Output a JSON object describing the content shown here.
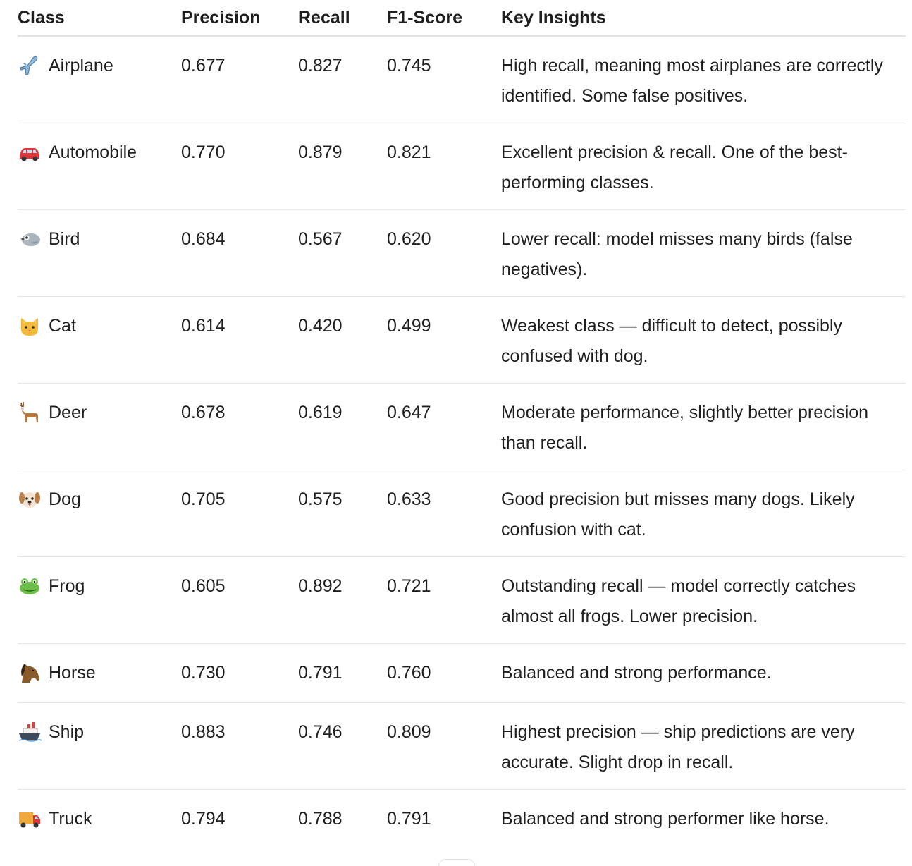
{
  "headers": {
    "class": "Class",
    "precision": "Precision",
    "recall": "Recall",
    "f1": "F1-Score",
    "insights": "Key Insights"
  },
  "rows": [
    {
      "icon": "airplane-icon",
      "class": "Airplane",
      "precision": "0.677",
      "recall": "0.827",
      "f1": "0.745",
      "insight": "High recall, meaning most airplanes are correctly identified. Some false positives."
    },
    {
      "icon": "automobile-icon",
      "class": "Automobile",
      "precision": "0.770",
      "recall": "0.879",
      "f1": "0.821",
      "insight": "Excellent precision & recall. One of the best-performing classes."
    },
    {
      "icon": "bird-icon",
      "class": "Bird",
      "precision": "0.684",
      "recall": "0.567",
      "f1": "0.620",
      "insight": "Lower recall: model misses many birds (false negatives)."
    },
    {
      "icon": "cat-icon",
      "class": "Cat",
      "precision": "0.614",
      "recall": "0.420",
      "f1": "0.499",
      "insight": "Weakest class — difficult to detect, possibly confused with dog."
    },
    {
      "icon": "deer-icon",
      "class": "Deer",
      "precision": "0.678",
      "recall": "0.619",
      "f1": "0.647",
      "insight": "Moderate performance, slightly better precision than recall."
    },
    {
      "icon": "dog-icon",
      "class": "Dog",
      "precision": "0.705",
      "recall": "0.575",
      "f1": "0.633",
      "insight": "Good precision but misses many dogs. Likely confusion with cat."
    },
    {
      "icon": "frog-icon",
      "class": "Frog",
      "precision": "0.605",
      "recall": "0.892",
      "f1": "0.721",
      "insight": "Outstanding recall — model correctly catches almost all frogs. Lower precision."
    },
    {
      "icon": "horse-icon",
      "class": "Horse",
      "precision": "0.730",
      "recall": "0.791",
      "f1": "0.760",
      "insight": "Balanced and strong performance."
    },
    {
      "icon": "ship-icon",
      "class": "Ship",
      "precision": "0.883",
      "recall": "0.746",
      "f1": "0.809",
      "insight": "Highest precision — ship predictions are very accurate. Slight drop in recall."
    },
    {
      "icon": "truck-icon",
      "class": "Truck",
      "precision": "0.794",
      "recall": "0.788",
      "f1": "0.791",
      "insight": "Balanced and strong performer like horse."
    }
  ]
}
